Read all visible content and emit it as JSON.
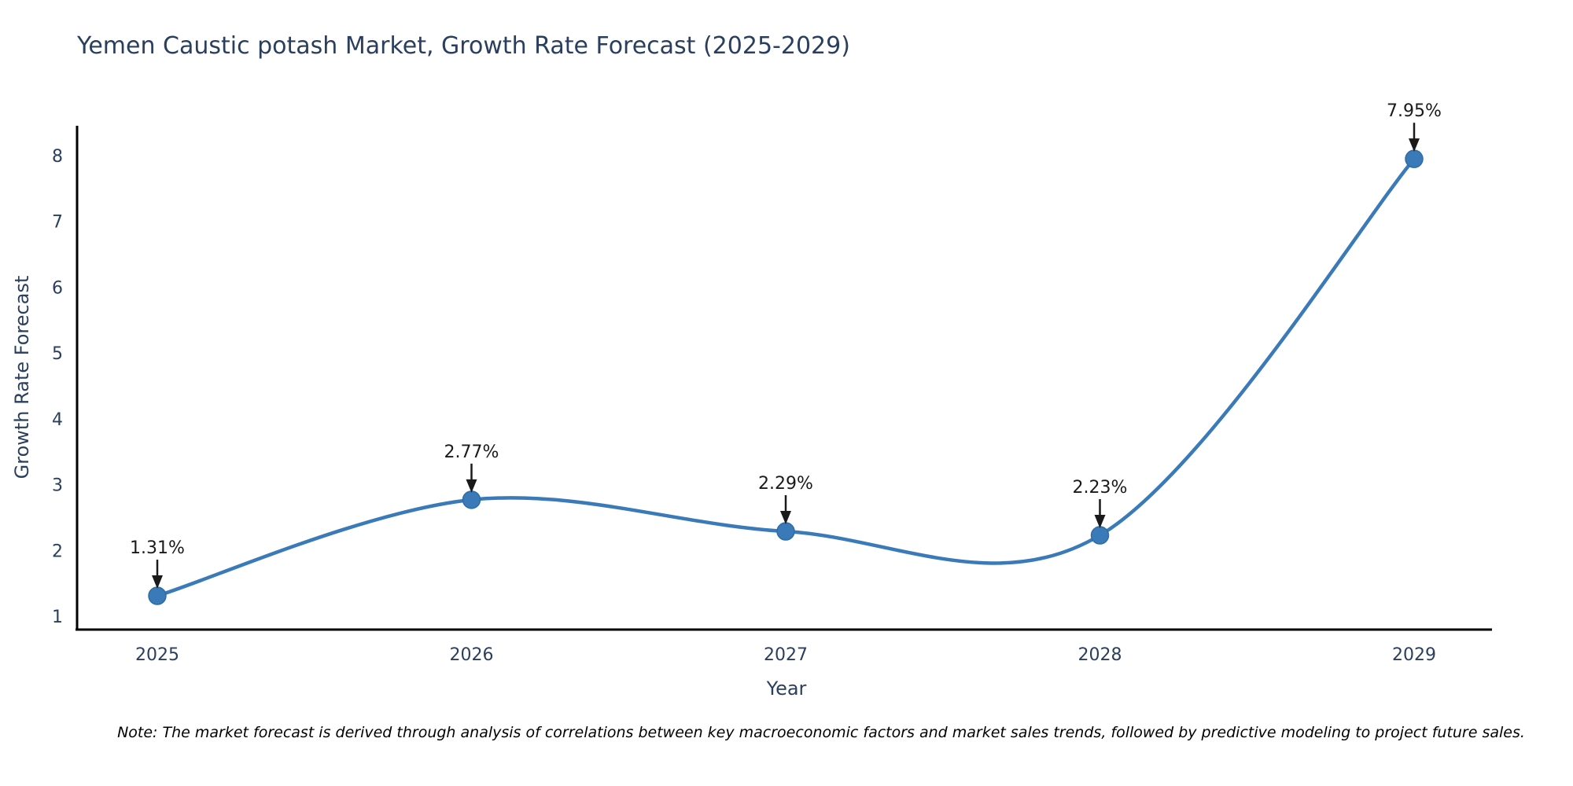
{
  "title": "Yemen Caustic potash Market, Growth Rate Forecast (2025-2029)",
  "note": "Note: The market forecast is derived through analysis of correlations between key macroeconomic factors and market sales trends, followed by predictive modeling to project future sales.",
  "colors": {
    "line": "#3a7ab8",
    "marker_fill": "#3a7ab8",
    "marker_border": "#2e6da4",
    "axis": "#000000",
    "text": "#2a3f5f",
    "annotation": "#1a1a1a"
  },
  "chart_data": {
    "type": "line",
    "line_shape": "spline",
    "title": "Yemen Caustic potash Market, Growth Rate Forecast (2025-2029)",
    "xlabel": "Year",
    "ylabel": "Growth Rate Forecast",
    "categories": [
      "2025",
      "2026",
      "2027",
      "2028",
      "2029"
    ],
    "values": [
      1.31,
      2.77,
      2.29,
      2.23,
      7.95
    ],
    "point_labels": [
      "1.31%",
      "2.77%",
      "2.29%",
      "2.23%",
      "7.95%"
    ],
    "yticks": [
      1,
      2,
      3,
      4,
      5,
      6,
      7,
      8
    ],
    "ylim": [
      0.8,
      8.45
    ],
    "grid": false,
    "legend": "none",
    "markers": true,
    "annotations_arrow": "down"
  }
}
